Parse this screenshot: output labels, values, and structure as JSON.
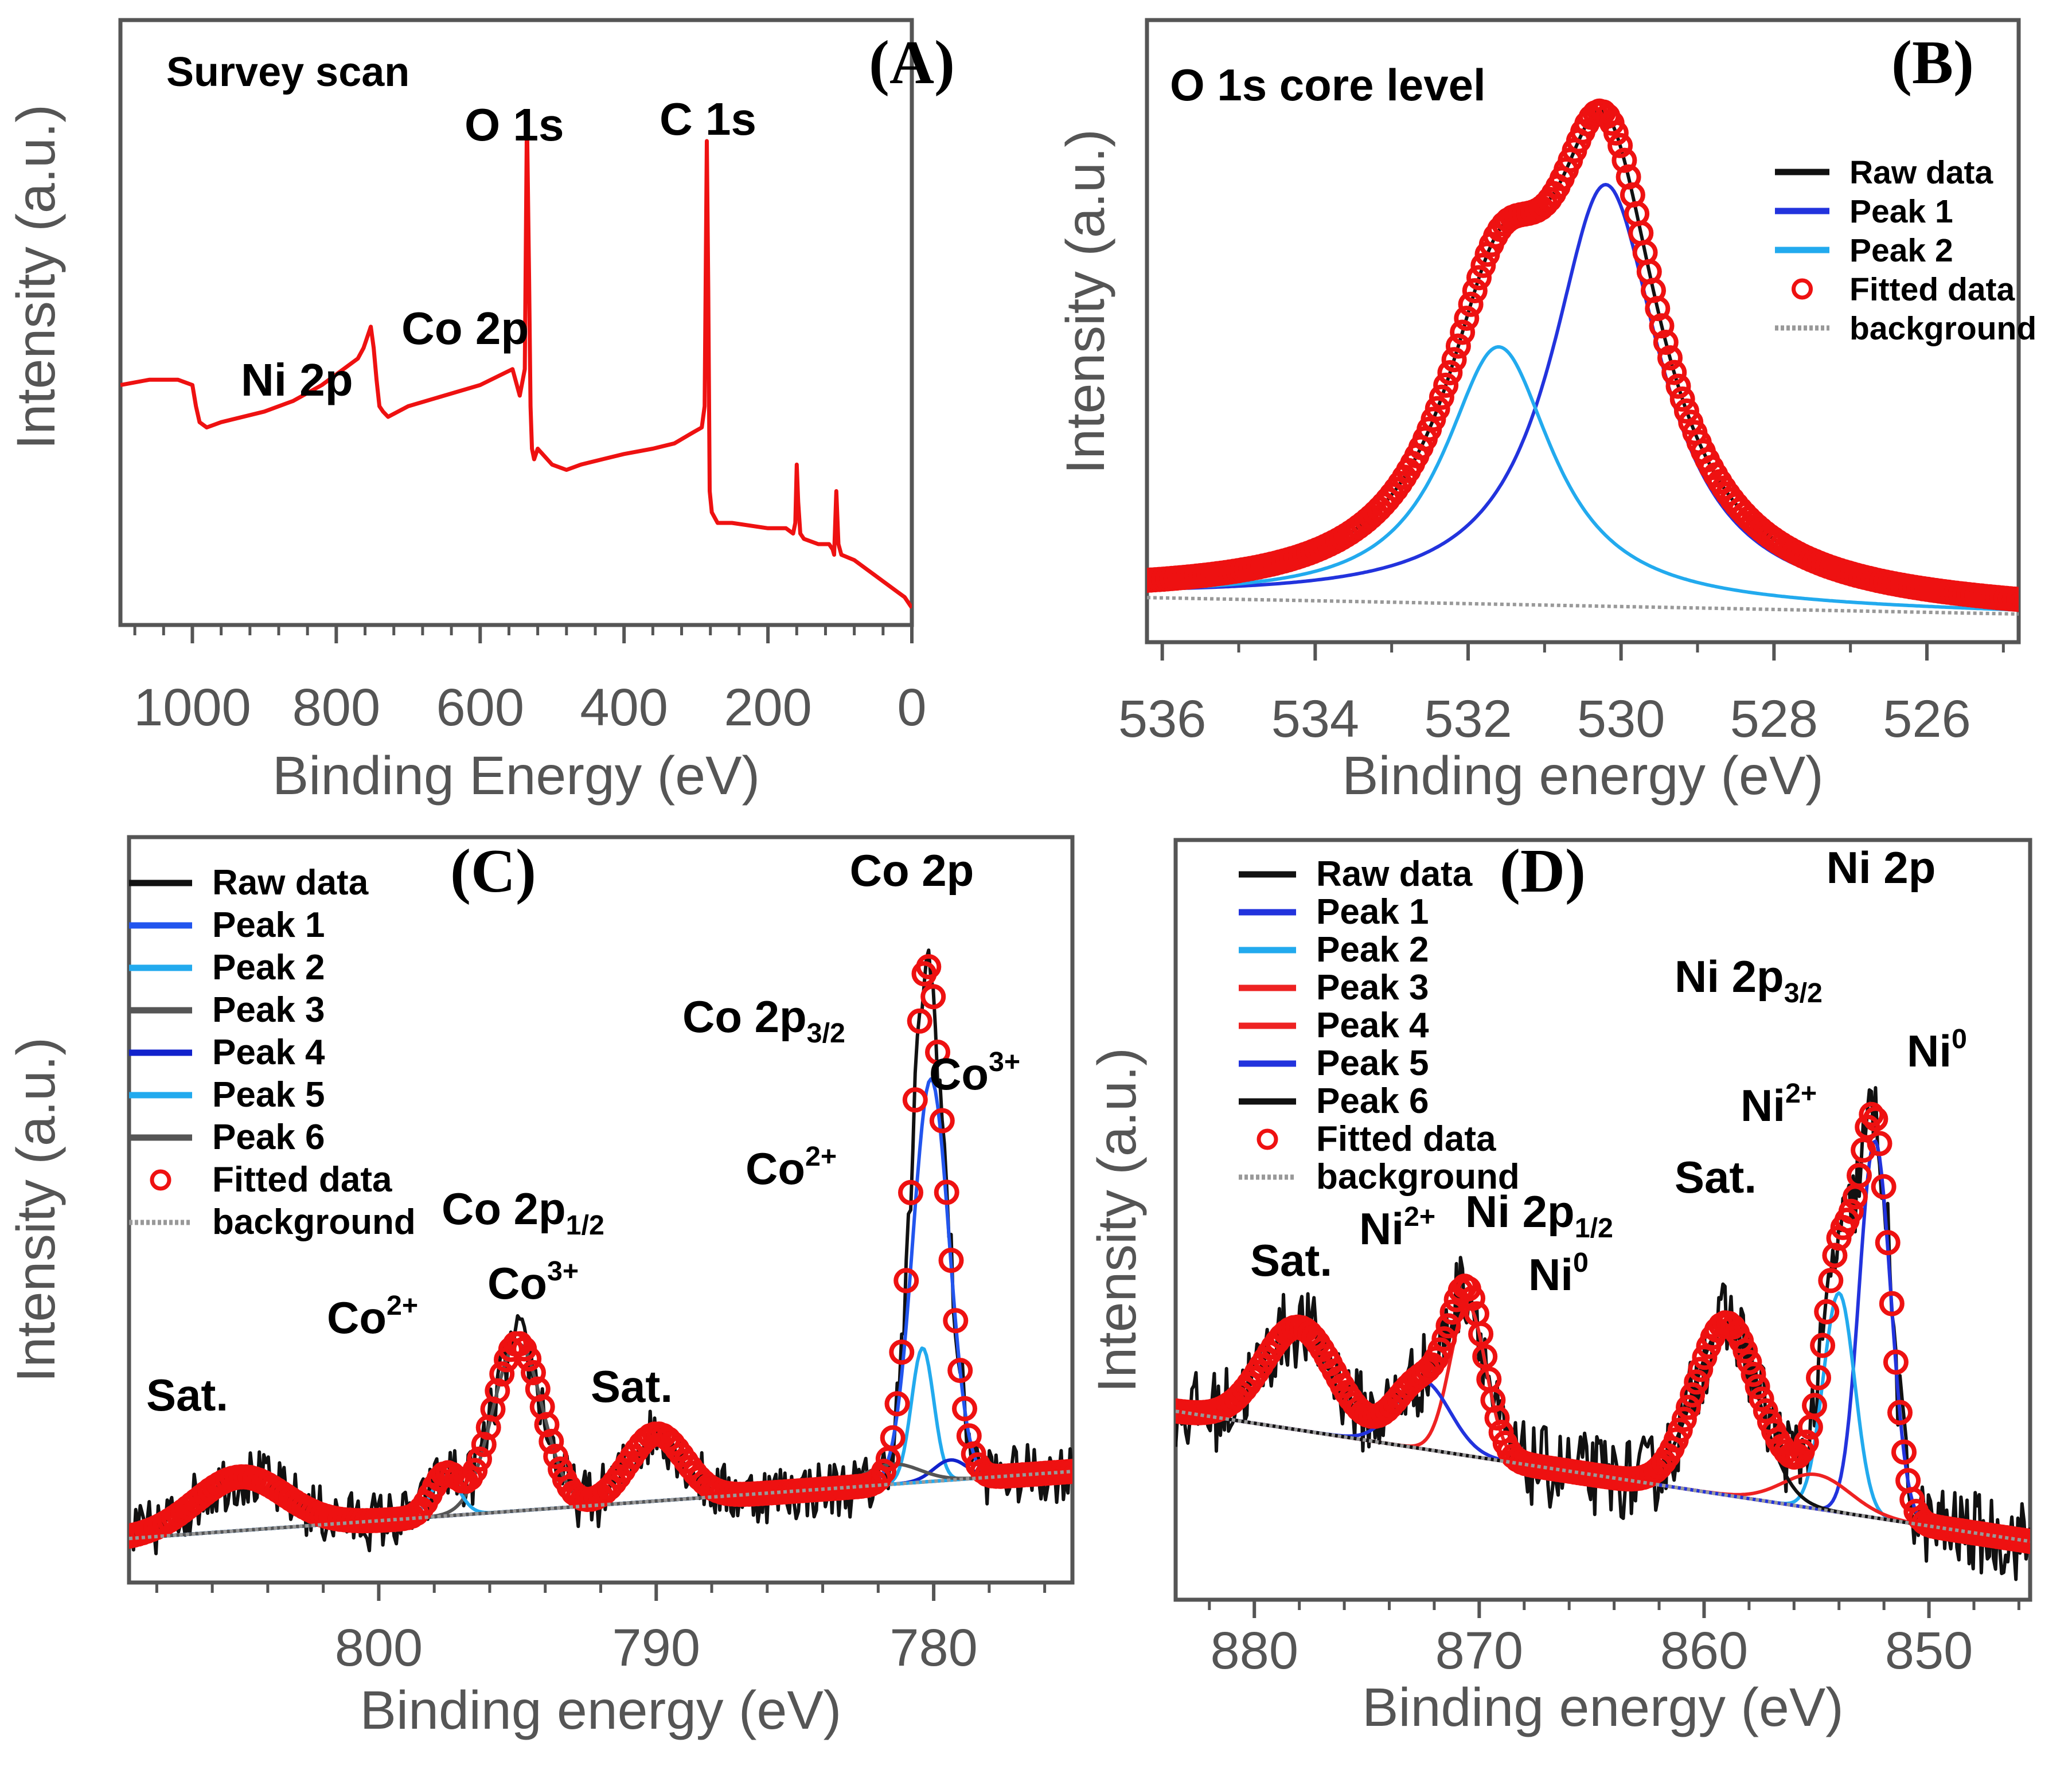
{
  "chart_data": [
    {
      "panel": "(A)",
      "type": "line",
      "title": "Survey scan",
      "xlabel": "Binding Energy (eV)",
      "ylabel": "Intensity (a.u.)",
      "xlim": [
        1100,
        0
      ],
      "ylim": [
        0,
        100
      ],
      "xticks": [
        1000,
        800,
        600,
        400,
        200,
        0
      ],
      "tick_labels": [
        "1000",
        "800",
        "600",
        "400",
        "200",
        "0"
      ],
      "color": "#ee1111",
      "annotations": [
        {
          "text": "O 1s",
          "x": 535,
          "sub": "",
          "sup": ""
        },
        {
          "text": "C 1s",
          "x": 285,
          "sub": "",
          "sup": ""
        },
        {
          "text": "Co 2p",
          "x": 780,
          "sub": "",
          "sup": ""
        },
        {
          "text": "Ni 2p",
          "x": 855,
          "sub": "",
          "sup": ""
        }
      ],
      "series": [
        {
          "name": "survey",
          "x": [
            1100,
            1060,
            1020,
            1000,
            995,
            990,
            980,
            960,
            900,
            860,
            820,
            790,
            770,
            762,
            757,
            752,
            748,
            744,
            740,
            735,
            728,
            700,
            650,
            600,
            570,
            555,
            545,
            538,
            535,
            532,
            530,
            528,
            525,
            520,
            500,
            480,
            460,
            430,
            400,
            360,
            330,
            305,
            292,
            288,
            285,
            283,
            281,
            278,
            270,
            250,
            200,
            175,
            165,
            162,
            160,
            158,
            155,
            150,
            130,
            115,
            110,
            108,
            105,
            102,
            98,
            80,
            60,
            40,
            20,
            10,
            0
          ],
          "y": [
            42,
            43,
            43,
            42,
            38,
            35,
            34,
            35,
            37,
            39,
            42,
            45,
            47,
            49,
            51,
            53,
            49,
            43,
            38,
            37,
            36,
            38,
            40,
            42,
            44,
            45,
            40,
            45,
            93,
            62,
            38,
            30,
            28,
            30,
            27,
            26,
            27,
            28,
            29,
            30,
            31,
            33,
            34,
            38,
            88,
            60,
            22,
            18,
            16,
            16,
            15,
            15,
            14,
            16,
            27,
            20,
            14,
            13,
            12,
            12,
            11,
            10,
            22,
            12,
            10,
            9,
            7,
            5,
            3,
            2,
            0
          ]
        }
      ]
    },
    {
      "panel": "(B)",
      "type": "line",
      "title": "O 1s core level",
      "xlabel": "Binding energy (eV)",
      "ylabel": "Intensity (a.u.)",
      "xlim": [
        536.2,
        524.8
      ],
      "ylim": [
        0,
        100
      ],
      "xticks": [
        536,
        534,
        532,
        530,
        528,
        526
      ],
      "tick_labels": [
        "536",
        "534",
        "532",
        "530",
        "528",
        "526"
      ],
      "legend": [
        "Raw data",
        "Peak 1",
        "Peak 2",
        "Fitted data",
        "background"
      ],
      "legend_position": "top-right",
      "series": [
        {
          "name": "Raw data",
          "color": "#111111",
          "peaks": [
            {
              "c": 530.2,
              "h": 77,
              "w": 0.75
            },
            {
              "c": 531.6,
              "h": 47,
              "w": 0.75
            }
          ],
          "baseline": [
            5,
            2
          ]
        },
        {
          "name": "Peak 1",
          "color": "#2233dd",
          "peaks": [
            {
              "c": 530.2,
              "h": 77,
              "w": 0.75
            }
          ],
          "baseline": [
            5,
            2
          ]
        },
        {
          "name": "Peak 2",
          "color": "#22aaee",
          "peaks": [
            {
              "c": 531.6,
              "h": 47,
              "w": 0.75
            }
          ],
          "baseline": [
            5,
            2
          ]
        },
        {
          "name": "Fitted data",
          "color": "#ee1111",
          "peaks": [
            {
              "c": 530.2,
              "h": 77,
              "w": 0.75
            },
            {
              "c": 531.6,
              "h": 47,
              "w": 0.75
            }
          ],
          "baseline": [
            5,
            2
          ]
        },
        {
          "name": "background",
          "color": "#999999",
          "peaks": [],
          "baseline": [
            5,
            2
          ]
        }
      ]
    },
    {
      "panel": "(C)",
      "type": "line",
      "title": "Co 2p",
      "xlabel": "Binding energy (eV)",
      "ylabel": "Intensity (a.u.)",
      "xlim": [
        809,
        775
      ],
      "ylim": [
        0,
        100
      ],
      "xticks": [
        800,
        790,
        780
      ],
      "tick_labels": [
        "800",
        "790",
        "780"
      ],
      "legend": [
        "Raw data",
        "Peak 1",
        "Peak 2",
        "Peak 3",
        "Peak 4",
        "Peak 5",
        "Peak 6",
        "Fitted data",
        "background"
      ],
      "legend_position": "top-left",
      "annotations": [
        {
          "text": "Co 2p",
          "sub": "3/2",
          "sup": "",
          "x": 784.5
        },
        {
          "text": "Co",
          "sub": "",
          "sup": "3+",
          "x": 777.8
        },
        {
          "text": "Co",
          "sub": "",
          "sup": "2+",
          "x": 783.7
        },
        {
          "text": "Co 2p",
          "sub": "1/2",
          "sup": "",
          "x": 799.0
        },
        {
          "text": "Co",
          "sub": "",
          "sup": "3+",
          "x": 793.3
        },
        {
          "text": "Co",
          "sub": "",
          "sup": "2+",
          "x": 799.0
        },
        {
          "text": "Sat.",
          "sub": "",
          "sup": "",
          "x": 804.5
        },
        {
          "text": "Sat.",
          "sub": "",
          "sup": "",
          "x": 789.6
        }
      ],
      "series": [
        {
          "name": "Raw data",
          "color": "#111111",
          "peaks": [
            {
              "c": 780.1,
              "h": 60,
              "w": 0.65
            },
            {
              "c": 780.4,
              "h": 20,
              "w": 0.4
            },
            {
              "c": 795.0,
              "h": 25,
              "w": 0.9
            },
            {
              "c": 797.6,
              "h": 6,
              "w": 0.5
            },
            {
              "c": 790.0,
              "h": 10,
              "w": 1.0
            },
            {
              "c": 805.0,
              "h": 8,
              "w": 1.6
            }
          ],
          "baseline": [
            4,
            14
          ]
        },
        {
          "name": "Peak 1",
          "color": "#2255ee",
          "peaks": [
            {
              "c": 780.1,
              "h": 60,
              "w": 0.65
            }
          ],
          "baseline": [
            4,
            14
          ]
        },
        {
          "name": "Peak 2",
          "color": "#22aaee",
          "peaks": [
            {
              "c": 780.4,
              "h": 20,
              "w": 0.4
            }
          ],
          "baseline": [
            4,
            14
          ]
        },
        {
          "name": "Peak 3",
          "color": "#555555",
          "peaks": [
            {
              "c": 795.0,
              "h": 25,
              "w": 0.9
            }
          ],
          "baseline": [
            4,
            14
          ]
        },
        {
          "name": "Peak 4",
          "color": "#1122cc",
          "peaks": [
            {
              "c": 779.4,
              "h": 3,
              "w": 0.6
            }
          ],
          "baseline": [
            4,
            14
          ]
        },
        {
          "name": "Peak 5",
          "color": "#22aaee",
          "peaks": [
            {
              "c": 797.6,
              "h": 6,
              "w": 0.5
            }
          ],
          "baseline": [
            4,
            14
          ]
        },
        {
          "name": "Peak 6",
          "color": "#555555",
          "peaks": [
            {
              "c": 781.5,
              "h": 3,
              "w": 1.0
            }
          ],
          "baseline": [
            4,
            14
          ]
        },
        {
          "name": "Fitted data",
          "color": "#ee1111",
          "peaks": [
            {
              "c": 780.1,
              "h": 60,
              "w": 0.65
            },
            {
              "c": 780.4,
              "h": 20,
              "w": 0.4
            },
            {
              "c": 795.0,
              "h": 25,
              "w": 0.9
            },
            {
              "c": 797.6,
              "h": 6,
              "w": 0.5
            },
            {
              "c": 790.0,
              "h": 10,
              "w": 1.0
            },
            {
              "c": 805.0,
              "h": 8,
              "w": 1.6
            }
          ],
          "baseline": [
            4,
            14
          ]
        },
        {
          "name": "background",
          "color": "#999999",
          "peaks": [],
          "baseline": [
            4,
            14
          ]
        }
      ]
    },
    {
      "panel": "(D)",
      "type": "line",
      "title": "Ni 2p",
      "xlabel": "Binding energy (eV)",
      "ylabel": "Intensity (a.u.)",
      "xlim": [
        883.5,
        845.5
      ],
      "ylim": [
        0,
        100
      ],
      "xticks": [
        880,
        870,
        860,
        850
      ],
      "tick_labels": [
        "880",
        "870",
        "860",
        "850"
      ],
      "legend": [
        "Raw data",
        "Peak 1",
        "Peak 2",
        "Peak 3",
        "Peak 4",
        "Peak 5",
        "Peak 6",
        "Fitted data",
        "background"
      ],
      "legend_position": "top-left",
      "annotations": [
        {
          "text": "Ni 2p",
          "sub": "3/2",
          "sup": "",
          "x": 855.5
        },
        {
          "text": "Ni",
          "sub": "",
          "sup": "0",
          "x": 851.0
        },
        {
          "text": "Ni",
          "sub": "",
          "sup": "2+",
          "x": 856.0
        },
        {
          "text": "Sat.",
          "sub": "",
          "sup": "",
          "x": 860.0
        },
        {
          "text": "Ni 2p",
          "sub": "1/2",
          "sup": "",
          "x": 868.5
        },
        {
          "text": "Ni",
          "sub": "",
          "sup": "2+",
          "x": 873.0
        },
        {
          "text": "Ni",
          "sub": "",
          "sup": "0",
          "x": 866.5
        },
        {
          "text": "Sat.",
          "sub": "",
          "sup": "",
          "x": 878.5
        }
      ],
      "series": [
        {
          "name": "Raw data",
          "color": "#111111",
          "peaks": [
            {
              "c": 852.4,
              "h": 55,
              "w": 0.7
            },
            {
              "c": 854.0,
              "h": 32,
              "w": 0.7
            },
            {
              "c": 859.0,
              "h": 25,
              "w": 1.4
            },
            {
              "c": 870.5,
              "h": 22,
              "w": 0.8
            },
            {
              "c": 872.5,
              "h": 10,
              "w": 1.2
            },
            {
              "c": 878.0,
              "h": 15,
              "w": 1.6
            },
            {
              "c": 855.0,
              "h": 5,
              "w": 1.5
            }
          ],
          "baseline": [
            25,
            6
          ]
        },
        {
          "name": "Peak 1",
          "color": "#2233dd",
          "peaks": [
            {
              "c": 852.4,
              "h": 55,
              "w": 0.7
            }
          ],
          "baseline": [
            25,
            6
          ]
        },
        {
          "name": "Peak 2",
          "color": "#22aaee",
          "peaks": [
            {
              "c": 854.0,
              "h": 32,
              "w": 0.7
            }
          ],
          "baseline": [
            25,
            6
          ]
        },
        {
          "name": "Peak 3",
          "color": "#ee2222",
          "peaks": [
            {
              "c": 870.5,
              "h": 22,
              "w": 0.8
            }
          ],
          "baseline": [
            25,
            6
          ]
        },
        {
          "name": "Peak 4",
          "color": "#ee2222",
          "peaks": [
            {
              "c": 855.0,
              "h": 5,
              "w": 1.5
            }
          ],
          "baseline": [
            25,
            6
          ]
        },
        {
          "name": "Peak 5",
          "color": "#2233dd",
          "peaks": [
            {
              "c": 872.5,
              "h": 10,
              "w": 1.2
            }
          ],
          "baseline": [
            25,
            6
          ]
        },
        {
          "name": "Peak 6",
          "color": "#111111",
          "peaks": [
            {
              "c": 859.0,
              "h": 25,
              "w": 1.4
            }
          ],
          "baseline": [
            25,
            6
          ]
        },
        {
          "name": "Fitted data",
          "color": "#ee1111",
          "peaks": [
            {
              "c": 852.4,
              "h": 55,
              "w": 0.7
            },
            {
              "c": 854.0,
              "h": 32,
              "w": 0.7
            },
            {
              "c": 859.0,
              "h": 25,
              "w": 1.4
            },
            {
              "c": 870.5,
              "h": 22,
              "w": 0.8
            },
            {
              "c": 872.5,
              "h": 10,
              "w": 1.2
            },
            {
              "c": 878.0,
              "h": 15,
              "w": 1.6
            },
            {
              "c": 855.0,
              "h": 5,
              "w": 1.5
            }
          ],
          "baseline": [
            25,
            6
          ]
        },
        {
          "name": "background",
          "color": "#999999",
          "peaks": [],
          "baseline": [
            25,
            6
          ]
        }
      ]
    }
  ]
}
